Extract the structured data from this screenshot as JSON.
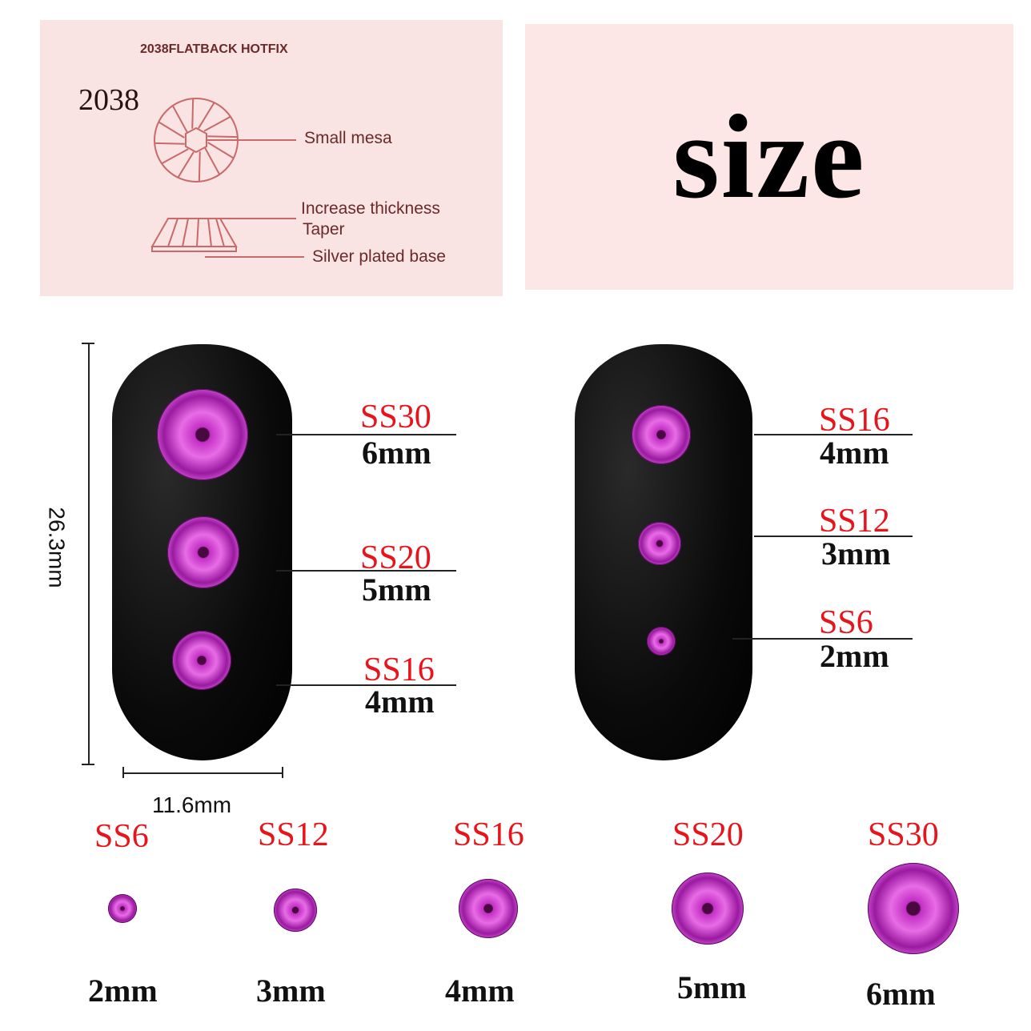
{
  "diagram_panel": {
    "header": "2038FLATBACK HOTFIX",
    "model": "2038",
    "labels": [
      "Small mesa",
      "Increase thickness",
      "Taper",
      "Silver plated base"
    ]
  },
  "title": "size",
  "dimensions": {
    "height": "26.3mm",
    "width": "11.6mm"
  },
  "left_nail": [
    {
      "ss": "SS30",
      "mm": "6mm"
    },
    {
      "ss": "SS20",
      "mm": "5mm"
    },
    {
      "ss": "SS16",
      "mm": "4mm"
    }
  ],
  "right_nail": [
    {
      "ss": "SS16",
      "mm": "4mm"
    },
    {
      "ss": "SS12",
      "mm": "3mm"
    },
    {
      "ss": "SS6",
      "mm": "2mm"
    }
  ],
  "size_row": [
    {
      "ss": "SS6",
      "mm": "2mm"
    },
    {
      "ss": "SS12",
      "mm": "3mm"
    },
    {
      "ss": "SS16",
      "mm": "4mm"
    },
    {
      "ss": "SS20",
      "mm": "5mm"
    },
    {
      "ss": "SS30",
      "mm": "6mm"
    }
  ],
  "colors": {
    "label_red": "#e8141c",
    "gem_purple": "#c22fc4",
    "panel_pink": "#f9e3e3"
  }
}
